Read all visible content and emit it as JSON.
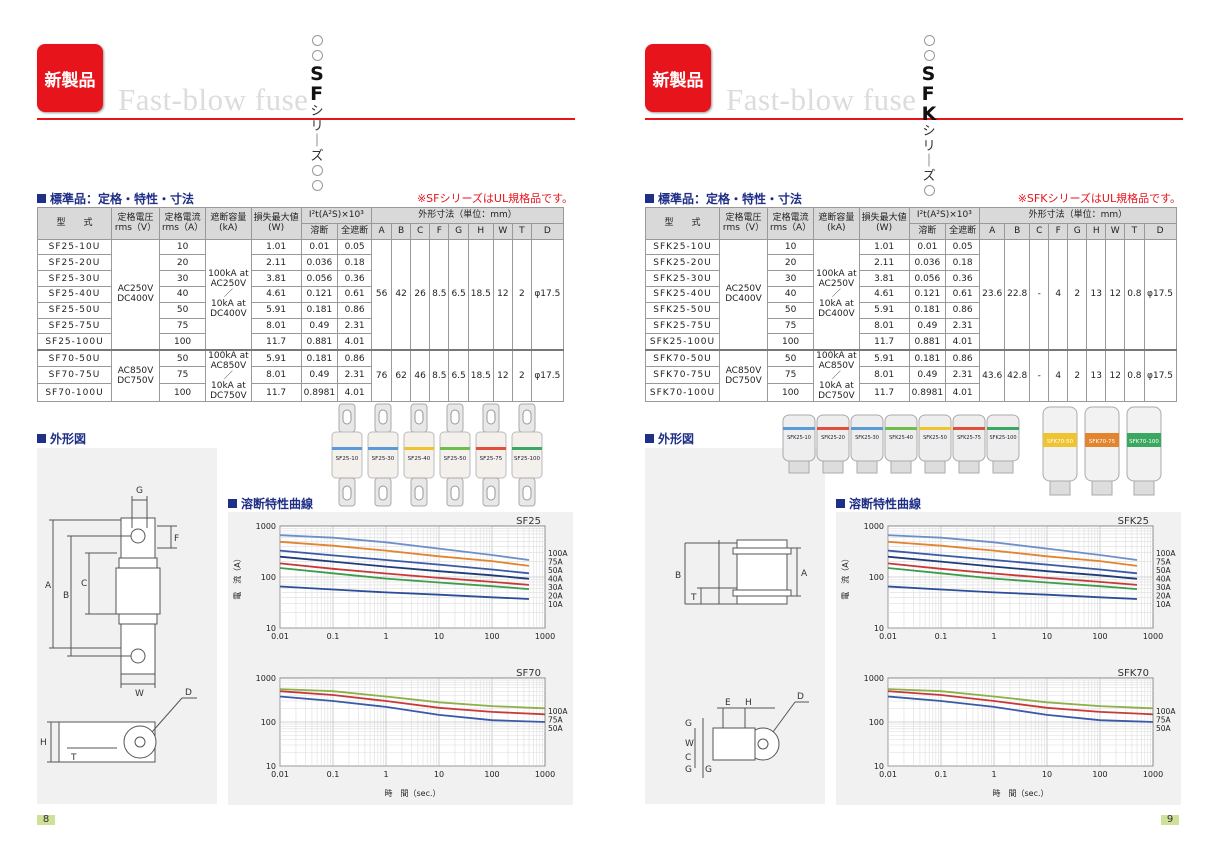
{
  "left": {
    "badge": "新製品",
    "subtitle": "Fast-blow fuse",
    "series_letters": "SF",
    "series_suffix": "シリーズ",
    "section_spec": "標準品：定格・特性・寸法",
    "ul_note": "※SFシリーズはUL規格品です。",
    "section_outline": "外形図",
    "section_curve": "溶断特性曲線",
    "page_number": "8",
    "photo_labels": [
      "SF25-10",
      "SF25-30",
      "SF25-40",
      "SF25-50",
      "SF25-75",
      "SF25-100"
    ],
    "rows": [
      {
        "model": "SF25-10U",
        "current": "10",
        "loss": "1.01",
        "melt": "0.01",
        "total": "0.05"
      },
      {
        "model": "SF25-20U",
        "current": "20",
        "loss": "2.11",
        "melt": "0.036",
        "total": "0.18"
      },
      {
        "model": "SF25-30U",
        "current": "30",
        "loss": "3.81",
        "melt": "0.056",
        "total": "0.36"
      },
      {
        "model": "SF25-40U",
        "current": "40",
        "loss": "4.61",
        "melt": "0.121",
        "total": "0.61"
      },
      {
        "model": "SF25-50U",
        "current": "50",
        "loss": "5.91",
        "melt": "0.181",
        "total": "0.86"
      },
      {
        "model": "SF25-75U",
        "current": "75",
        "loss": "8.01",
        "melt": "0.49",
        "total": "2.31"
      },
      {
        "model": "SF25-100U",
        "current": "100",
        "loss": "11.7",
        "melt": "0.881",
        "total": "4.01"
      },
      {
        "model": "SF70-50U",
        "current": "50",
        "loss": "5.91",
        "melt": "0.181",
        "total": "0.86"
      },
      {
        "model": "SF70-75U",
        "current": "75",
        "loss": "8.01",
        "melt": "0.49",
        "total": "2.31"
      },
      {
        "model": "SF70-100U",
        "current": "100",
        "loss": "11.7",
        "melt": "0.8981",
        "total": "4.01"
      }
    ],
    "g1": {
      "voltage": [
        "AC250V",
        "DC400V"
      ],
      "break": [
        "100kA at",
        "AC250V",
        "／",
        "10kA at",
        "DC400V"
      ],
      "dims": [
        "56",
        "42",
        "26",
        "8.5",
        "6.5",
        "18.5",
        "12",
        "2",
        "φ17.5"
      ]
    },
    "g2": {
      "voltage": [
        "AC850V",
        "DC750V"
      ],
      "break": [
        "100kA at",
        "AC850V",
        "／",
        "10kA at",
        "DC750V"
      ],
      "dims": [
        "76",
        "62",
        "46",
        "8.5",
        "6.5",
        "18.5",
        "12",
        "2",
        "φ17.5"
      ]
    }
  },
  "right": {
    "badge": "新製品",
    "subtitle": "Fast-blow fuse",
    "series_letters": "SFK",
    "series_suffix": "シリーズ",
    "section_spec": "標準品：定格・特性・寸法",
    "ul_note": "※SFKシリーズはUL規格品です。",
    "section_outline": "外形図",
    "section_curve": "溶断特性曲線",
    "page_number": "9",
    "photo_labels": [
      "SFK25-10",
      "SFK25-20",
      "SFK25-30",
      "SFK25-40",
      "SFK25-50",
      "SFK25-75",
      "SFK25-100"
    ],
    "photo_labels2": [
      "SFK70-50",
      "SFK70-75",
      "SFK70-100"
    ],
    "rows": [
      {
        "model": "SFK25-10U",
        "current": "10",
        "loss": "1.01",
        "melt": "0.01",
        "total": "0.05"
      },
      {
        "model": "SFK25-20U",
        "current": "20",
        "loss": "2.11",
        "melt": "0.036",
        "total": "0.18"
      },
      {
        "model": "SFK25-30U",
        "current": "30",
        "loss": "3.81",
        "melt": "0.056",
        "total": "0.36"
      },
      {
        "model": "SFK25-40U",
        "current": "40",
        "loss": "4.61",
        "melt": "0.121",
        "total": "0.61"
      },
      {
        "model": "SFK25-50U",
        "current": "50",
        "loss": "5.91",
        "melt": "0.181",
        "total": "0.86"
      },
      {
        "model": "SFK25-75U",
        "current": "75",
        "loss": "8.01",
        "melt": "0.49",
        "total": "2.31"
      },
      {
        "model": "SFK25-100U",
        "current": "100",
        "loss": "11.7",
        "melt": "0.881",
        "total": "4.01"
      },
      {
        "model": "SFK70-50U",
        "current": "50",
        "loss": "5.91",
        "melt": "0.181",
        "total": "0.86"
      },
      {
        "model": "SFK70-75U",
        "current": "75",
        "loss": "8.01",
        "melt": "0.49",
        "total": "2.31"
      },
      {
        "model": "SFK70-100U",
        "current": "100",
        "loss": "11.7",
        "melt": "0.8981",
        "total": "4.01"
      }
    ],
    "g1": {
      "voltage": [
        "AC250V",
        "DC400V"
      ],
      "break": [
        "100kA at",
        "AC250V",
        "／",
        "10kA at",
        "DC400V"
      ],
      "dims": [
        "23.6",
        "22.8",
        "-",
        "4",
        "2",
        "13",
        "12",
        "0.8",
        "φ17.5"
      ]
    },
    "g2": {
      "voltage": [
        "AC850V",
        "DC750V"
      ],
      "break": [
        "100kA at",
        "AC850V",
        "／",
        "10kA at",
        "DC750V"
      ],
      "dims": [
        "43.6",
        "42.8",
        "-",
        "4",
        "2",
        "13",
        "12",
        "0.8",
        "φ17.5"
      ]
    }
  },
  "table_header": {
    "model": "型　　式",
    "voltage": [
      "定格電圧",
      "rms（V）"
    ],
    "current": [
      "定格電流",
      "rms（A）"
    ],
    "break": [
      "遮断容量",
      "(kA)"
    ],
    "loss": [
      "損失最大値",
      "(W)"
    ],
    "i2t": "I²t(A²S)×10³",
    "melt": "溶断",
    "total": "全遮断",
    "dims": "外形寸法（単位：mm）",
    "dim_cols": [
      "A",
      "B",
      "C",
      "F",
      "G",
      "H",
      "W",
      "T",
      "D"
    ]
  },
  "outline_left": {
    "labels": [
      "G",
      "F",
      "A",
      "B",
      "C",
      "W",
      "D",
      "H",
      "T"
    ]
  },
  "outline_right": {
    "labels": [
      "B",
      "T",
      "A",
      "E",
      "H",
      "D",
      "G",
      "W",
      "C",
      "G",
      "G"
    ]
  },
  "chart_data": [
    {
      "type": "line",
      "title": "SF25",
      "scale": "log-log",
      "xlim": [
        0.01,
        1000
      ],
      "ylim": [
        10,
        1000
      ],
      "x_ticks": [
        "0.01",
        "0.1",
        "1",
        "10",
        "100",
        "1000"
      ],
      "y_ticks": [
        "1000",
        "100",
        "10"
      ],
      "ylabel": "電　流（A）",
      "legend": [
        "100A",
        "75A",
        "50A",
        "40A",
        "30A",
        "20A",
        "10A"
      ],
      "series": [
        {
          "name": "100A",
          "color": "#6e90c9",
          "x": [
            0.01,
            0.1,
            1,
            10,
            100,
            500
          ],
          "y": [
            660,
            590,
            480,
            360,
            270,
            215
          ]
        },
        {
          "name": "75A",
          "color": "#e3842f",
          "x": [
            0.01,
            0.1,
            1,
            10,
            100,
            500
          ],
          "y": [
            490,
            410,
            330,
            255,
            205,
            165
          ]
        },
        {
          "name": "50A",
          "color": "#3a5aa8",
          "x": [
            0.01,
            0.1,
            1,
            10,
            100,
            500
          ],
          "y": [
            330,
            265,
            215,
            175,
            140,
            118
          ]
        },
        {
          "name": "40A",
          "color": "#1e3c78",
          "x": [
            0.01,
            0.1,
            1,
            10,
            100,
            500
          ],
          "y": [
            250,
            200,
            160,
            130,
            108,
            92
          ]
        },
        {
          "name": "30A",
          "color": "#c83a3a",
          "x": [
            0.01,
            0.1,
            1,
            10,
            100,
            500
          ],
          "y": [
            185,
            145,
            117,
            96,
            80,
            70
          ]
        },
        {
          "name": "20A",
          "color": "#3c9e4a",
          "x": [
            0.01,
            0.1,
            1,
            10,
            100,
            500
          ],
          "y": [
            150,
            118,
            93,
            78,
            66,
            58
          ]
        },
        {
          "name": "10A",
          "color": "#2b4e9a",
          "x": [
            0.01,
            0.1,
            1,
            10,
            100,
            500
          ],
          "y": [
            65,
            57,
            50,
            45,
            40,
            37
          ]
        }
      ]
    },
    {
      "type": "line",
      "title": "SF70",
      "scale": "log-log",
      "xlim": [
        0.01,
        1000
      ],
      "ylim": [
        10,
        1000
      ],
      "x_ticks": [
        "0.01",
        "0.1",
        "1",
        "10",
        "100",
        "1000"
      ],
      "y_ticks": [
        "1000",
        "100",
        "10"
      ],
      "xlabel": "時　間（sec.）",
      "legend": [
        "100A",
        "75A",
        "50A"
      ],
      "series": [
        {
          "name": "100A",
          "color": "#8cb04a",
          "x": [
            0.01,
            0.1,
            1,
            10,
            100,
            1000
          ],
          "y": [
            560,
            500,
            380,
            280,
            230,
            205
          ]
        },
        {
          "name": "75A",
          "color": "#c83a3a",
          "x": [
            0.01,
            0.1,
            1,
            10,
            100,
            1000
          ],
          "y": [
            500,
            410,
            300,
            210,
            170,
            150
          ]
        },
        {
          "name": "50A",
          "color": "#3a5aa8",
          "x": [
            0.01,
            0.1,
            1,
            10,
            100,
            1000
          ],
          "y": [
            380,
            300,
            220,
            145,
            110,
            100
          ]
        }
      ]
    },
    {
      "type": "line",
      "title": "SFK25",
      "scale": "log-log",
      "xlim": [
        0.01,
        1000
      ],
      "ylim": [
        10,
        1000
      ],
      "x_ticks": [
        "0.01",
        "0.1",
        "1",
        "10",
        "100",
        "1000"
      ],
      "y_ticks": [
        "1000",
        "100",
        "10"
      ],
      "ylabel": "電　流（A）",
      "legend": [
        "100A",
        "75A",
        "50A",
        "40A",
        "30A",
        "20A",
        "10A"
      ],
      "series": [
        {
          "name": "100A",
          "color": "#6e90c9",
          "x": [
            0.01,
            0.1,
            1,
            10,
            100,
            500
          ],
          "y": [
            660,
            590,
            480,
            360,
            270,
            215
          ]
        },
        {
          "name": "75A",
          "color": "#e3842f",
          "x": [
            0.01,
            0.1,
            1,
            10,
            100,
            500
          ],
          "y": [
            490,
            410,
            330,
            255,
            205,
            165
          ]
        },
        {
          "name": "50A",
          "color": "#3a5aa8",
          "x": [
            0.01,
            0.1,
            1,
            10,
            100,
            500
          ],
          "y": [
            330,
            265,
            215,
            175,
            140,
            118
          ]
        },
        {
          "name": "40A",
          "color": "#1e3c78",
          "x": [
            0.01,
            0.1,
            1,
            10,
            100,
            500
          ],
          "y": [
            250,
            200,
            160,
            130,
            108,
            92
          ]
        },
        {
          "name": "30A",
          "color": "#c83a3a",
          "x": [
            0.01,
            0.1,
            1,
            10,
            100,
            500
          ],
          "y": [
            185,
            145,
            117,
            96,
            80,
            70
          ]
        },
        {
          "name": "20A",
          "color": "#3c9e4a",
          "x": [
            0.01,
            0.1,
            1,
            10,
            100,
            500
          ],
          "y": [
            150,
            118,
            93,
            78,
            66,
            58
          ]
        },
        {
          "name": "10A",
          "color": "#2b4e9a",
          "x": [
            0.01,
            0.1,
            1,
            10,
            100,
            500
          ],
          "y": [
            65,
            57,
            50,
            45,
            40,
            37
          ]
        }
      ]
    },
    {
      "type": "line",
      "title": "SFK70",
      "scale": "log-log",
      "xlim": [
        0.01,
        1000
      ],
      "ylim": [
        10,
        1000
      ],
      "x_ticks": [
        "0.01",
        "0.1",
        "1",
        "10",
        "100",
        "1000"
      ],
      "y_ticks": [
        "1000",
        "100",
        "10"
      ],
      "xlabel": "時　間（sec.）",
      "legend": [
        "100A",
        "75A",
        "50A"
      ],
      "series": [
        {
          "name": "100A",
          "color": "#8cb04a",
          "x": [
            0.01,
            0.1,
            1,
            10,
            100,
            1000
          ],
          "y": [
            560,
            500,
            380,
            280,
            230,
            205
          ]
        },
        {
          "name": "75A",
          "color": "#c83a3a",
          "x": [
            0.01,
            0.1,
            1,
            10,
            100,
            1000
          ],
          "y": [
            500,
            410,
            300,
            210,
            170,
            150
          ]
        },
        {
          "name": "50A",
          "color": "#3a5aa8",
          "x": [
            0.01,
            0.1,
            1,
            10,
            100,
            1000
          ],
          "y": [
            380,
            300,
            220,
            145,
            110,
            100
          ]
        }
      ]
    }
  ]
}
